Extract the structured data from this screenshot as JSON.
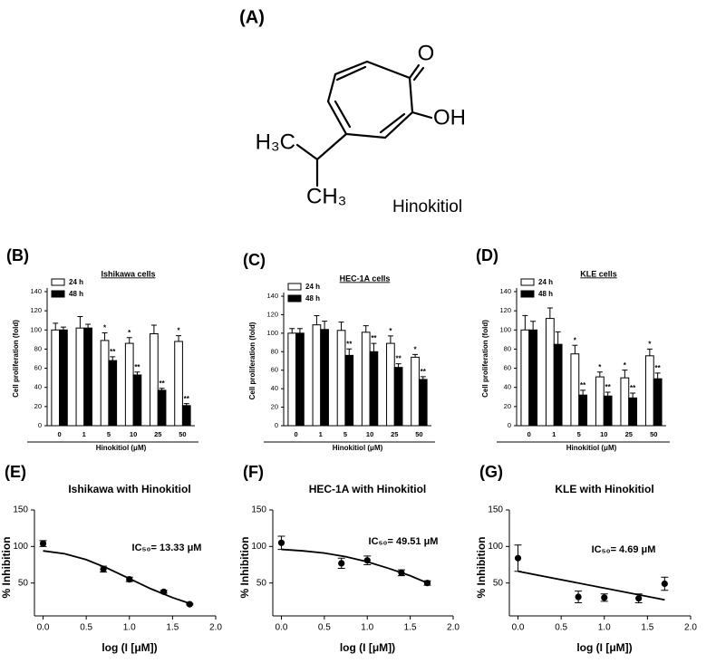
{
  "structure": {
    "label": "(A)",
    "carbonyl": "O",
    "hydroxyl": "OH",
    "methyl_left": "H₃C",
    "methyl_bottom": "CH₃",
    "name": "Hinokitiol"
  },
  "chart_data": [
    {
      "type": "bar",
      "panel_label": "(B)",
      "title": "Ishikawa cells",
      "xlabel": "Hinokitiol (μM)",
      "ylabel": "Cell proliferation (fold)",
      "categories": [
        "0",
        "1",
        "5",
        "10",
        "25",
        "50"
      ],
      "ylim": [
        0,
        140
      ],
      "yticks": [
        0,
        20,
        40,
        60,
        80,
        100,
        120,
        140
      ],
      "series": [
        {
          "name": "24 h",
          "color": "#ffffff",
          "values": [
            100,
            102,
            89,
            86,
            96,
            88
          ],
          "errors": [
            7,
            12,
            8,
            6,
            9,
            6
          ],
          "marks": [
            null,
            null,
            "*",
            "*",
            null,
            "*"
          ]
        },
        {
          "name": "48 h",
          "color": "#000000",
          "values": [
            100,
            102,
            68,
            53,
            37,
            21
          ],
          "errors": [
            3,
            4,
            4,
            3,
            2,
            2
          ],
          "marks": [
            null,
            null,
            "**",
            "**",
            "**",
            "**"
          ]
        }
      ]
    },
    {
      "type": "bar",
      "panel_label": "(C)",
      "title": "HEC-1A cells",
      "xlabel": "Hinokitiol (μM)",
      "ylabel": "Cell proliferation (fold)",
      "categories": [
        "0",
        "1",
        "5",
        "10",
        "25",
        "50"
      ],
      "ylim": [
        0,
        140
      ],
      "yticks": [
        0,
        20,
        40,
        60,
        80,
        100,
        120,
        140
      ],
      "series": [
        {
          "name": "24 h",
          "color": "#ffffff",
          "values": [
            100,
            109,
            103,
            101,
            89,
            74
          ],
          "errors": [
            5,
            10,
            9,
            7,
            8,
            3
          ],
          "marks": [
            null,
            null,
            null,
            null,
            "*",
            "*"
          ]
        },
        {
          "name": "48 h",
          "color": "#000000",
          "values": [
            100,
            104,
            76,
            80,
            63,
            50
          ],
          "errors": [
            5,
            9,
            7,
            9,
            4,
            3
          ],
          "marks": [
            null,
            null,
            "**",
            "**",
            "**",
            "**"
          ]
        }
      ]
    },
    {
      "type": "bar",
      "panel_label": "(D)",
      "title": "KLE cells",
      "xlabel": "Hinokitiol (μM)",
      "ylabel": "Cell proliferation (fold)",
      "categories": [
        "0",
        "1",
        "5",
        "10",
        "25",
        "50"
      ],
      "ylim": [
        0,
        140
      ],
      "yticks": [
        0,
        20,
        40,
        60,
        80,
        100,
        120,
        140
      ],
      "series": [
        {
          "name": "24 h",
          "color": "#ffffff",
          "values": [
            100,
            112,
            75,
            51,
            50,
            73
          ],
          "errors": [
            15,
            11,
            9,
            5,
            8,
            7
          ],
          "marks": [
            null,
            null,
            "*",
            "*",
            "*",
            "*"
          ]
        },
        {
          "name": "48 h",
          "color": "#000000",
          "values": [
            100,
            85,
            32,
            31,
            29,
            49
          ],
          "errors": [
            9,
            13,
            5,
            4,
            5,
            6
          ],
          "marks": [
            null,
            null,
            "**",
            "**",
            "**",
            "**"
          ]
        }
      ]
    },
    {
      "type": "scatter",
      "panel_label": "(E)",
      "title": "Ishikawa with Hinokitiol",
      "xlabel": "log (I [μM])",
      "ylabel": "% Inhibition",
      "annotation": "IC₅₀= 13.33 μM",
      "color": "#000000",
      "x": [
        0,
        0.699,
        1,
        1.398,
        1.699
      ],
      "values": [
        104,
        69,
        55,
        38,
        21
      ],
      "errors": [
        4,
        4,
        3,
        2,
        1
      ],
      "fit": {
        "x": [
          0,
          0.25,
          0.5,
          0.75,
          1,
          1.25,
          1.5,
          1.7
        ],
        "values": [
          94,
          90,
          82,
          70,
          56,
          42,
          30,
          22
        ]
      },
      "xlim": [
        -0.1,
        2.0
      ],
      "xticks": [
        {
          "value": 0,
          "label": "0.0"
        },
        0.5,
        {
          "value": 1,
          "label": "1.0"
        },
        1.5,
        {
          "value": 2,
          "label": "2.0"
        }
      ],
      "ylim": [
        5,
        150
      ],
      "yticks": [
        50,
        100,
        150
      ]
    },
    {
      "type": "scatter",
      "panel_label": "(F)",
      "title": "HEC-1A with Hinokitiol",
      "xlabel": "log (I [μM])",
      "ylabel": "% Inhibition",
      "annotation": "IC₅₀= 49.51 μM",
      "color": "#000000",
      "x": [
        0,
        0.699,
        1,
        1.398,
        1.699
      ],
      "values": [
        105,
        77,
        81,
        64,
        50
      ],
      "errors": [
        9,
        7,
        6,
        4,
        3
      ],
      "fit": {
        "x": [
          0,
          0.25,
          0.5,
          0.75,
          1,
          1.25,
          1.5,
          1.7
        ],
        "values": [
          96,
          94,
          91,
          86,
          79,
          70,
          60,
          50
        ]
      },
      "xlim": [
        -0.1,
        2.0
      ],
      "xticks": [
        {
          "value": 0,
          "label": "0.0"
        },
        0.5,
        {
          "value": 1,
          "label": "1.0"
        },
        1.5,
        {
          "value": 2,
          "label": "2.0"
        }
      ],
      "ylim": [
        5,
        150
      ],
      "yticks": [
        50,
        100,
        150
      ]
    },
    {
      "type": "scatter",
      "panel_label": "(G)",
      "title": "KLE with Hinokitiol",
      "xlabel": "log (I [μM])",
      "ylabel": "% Inhibition",
      "annotation": "IC₅₀= 4.69 μM",
      "color": "#000000",
      "x": [
        0,
        0.699,
        1,
        1.398,
        1.699
      ],
      "values": [
        84,
        31,
        30,
        29,
        49
      ],
      "errors": [
        18,
        8,
        5,
        6,
        9
      ],
      "fit": {
        "x": [
          0,
          1.7
        ],
        "values": [
          66,
          27
        ]
      },
      "xlim": [
        -0.1,
        2.0
      ],
      "xticks": [
        {
          "value": 0,
          "label": "0.0"
        },
        0.5,
        {
          "value": 1,
          "label": "1.0"
        },
        1.5,
        {
          "value": 2,
          "label": "2.0"
        }
      ],
      "ylim": [
        5,
        150
      ],
      "yticks": [
        50,
        100,
        150
      ]
    }
  ]
}
